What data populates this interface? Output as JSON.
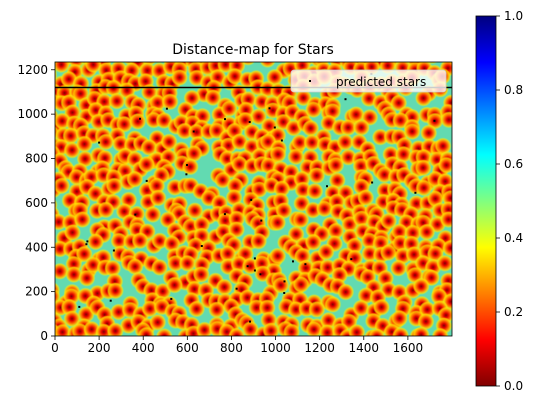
{
  "chart_data": {
    "type": "heatmap",
    "title": "Distance-map for Stars",
    "xlabel": "",
    "ylabel": "",
    "xlim": [
      0,
      1800
    ],
    "ylim": [
      0,
      1235
    ],
    "x_ticks": [
      "0",
      "200",
      "400",
      "600",
      "800",
      "1000",
      "1200",
      "1400",
      "1600"
    ],
    "y_ticks": [
      "0",
      "200",
      "400",
      "600",
      "800",
      "1000",
      "1200"
    ],
    "colorbar": {
      "range": [
        0,
        1
      ],
      "ticks": [
        "0.0",
        "0.2",
        "0.4",
        "0.6",
        "0.8",
        "1.0"
      ],
      "colormap": "jet (reversed: 0 = dark red, 1 = dark blue)"
    },
    "legend": {
      "entries": [
        "predicted stars"
      ],
      "position": "top-right"
    },
    "horizontal_line_y": 1120,
    "colors": {
      "low": "#800000",
      "high": "#00007f",
      "line": "#000000",
      "marker": "#000000"
    }
  }
}
